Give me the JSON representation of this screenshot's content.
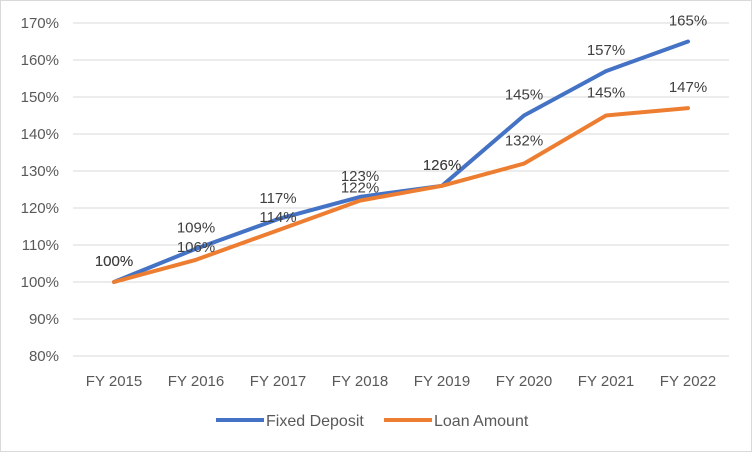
{
  "chart_data": {
    "type": "line",
    "categories": [
      "FY 2015",
      "FY 2016",
      "FY 2017",
      "FY 2018",
      "FY 2019",
      "FY 2020",
      "FY 2021",
      "FY 2022"
    ],
    "series": [
      {
        "name": "Fixed Deposit",
        "color": "#4472C4",
        "values": [
          100,
          109,
          117,
          123,
          126,
          145,
          157,
          165
        ],
        "labels": [
          "100%",
          "109%",
          "117%",
          "123%",
          "126%",
          "145%",
          "157%",
          "165%"
        ]
      },
      {
        "name": "Loan Amount",
        "color": "#ED7D31",
        "values": [
          100,
          106,
          114,
          122,
          126,
          132,
          145,
          147
        ],
        "labels": [
          "100%",
          "106%",
          "114%",
          "122%",
          "126%",
          "132%",
          "145%",
          "147%"
        ]
      }
    ],
    "ylim": [
      80,
      170
    ],
    "yticks": [
      "80%",
      "90%",
      "100%",
      "110%",
      "120%",
      "130%",
      "140%",
      "150%",
      "160%",
      "170%"
    ],
    "grid": true,
    "legend": "bottom"
  }
}
